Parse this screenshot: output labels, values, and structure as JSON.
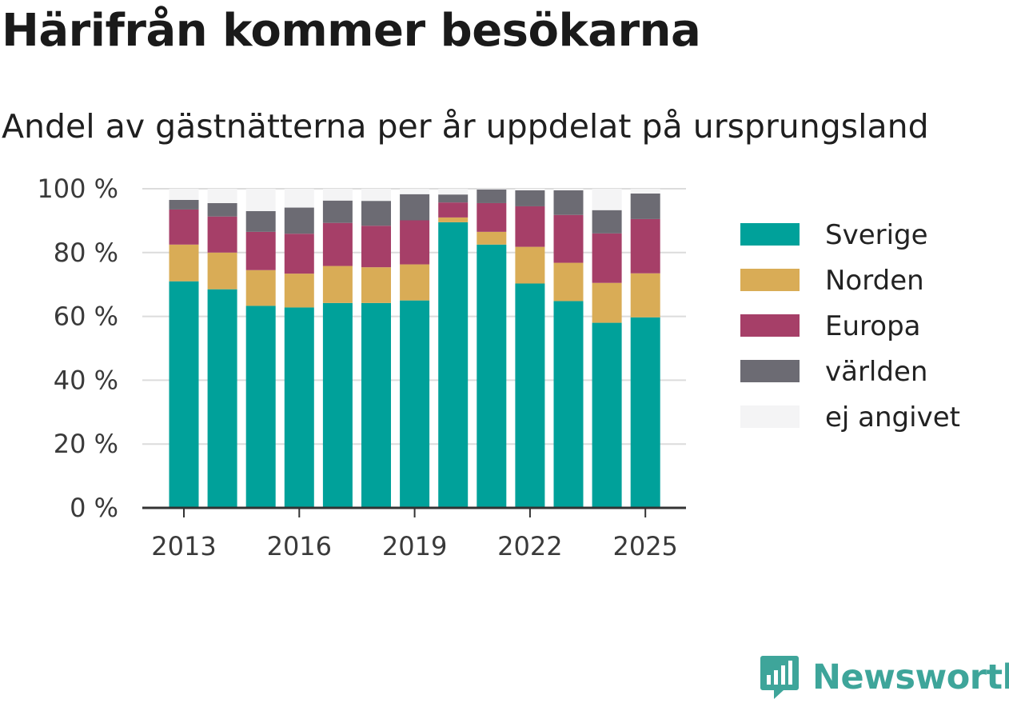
{
  "title": "Härifrån kommer besökarna",
  "subtitle": "Andel av gästnätterna per år uppdelat på ursprungsland",
  "brand": "Newsworthy",
  "brand_color": "#3ea59a",
  "chart_data": {
    "type": "bar",
    "stacked": true,
    "categories": [
      "2013",
      "2014",
      "2015",
      "2016",
      "2017",
      "2018",
      "2019",
      "2020",
      "2021",
      "2022",
      "2023",
      "2024",
      "2025"
    ],
    "x_tick_labels": [
      "2013",
      "2016",
      "2019",
      "2022",
      "2025"
    ],
    "y_tick_labels": [
      "0 %",
      "20 %",
      "40 %",
      "60 %",
      "80 %",
      "100 %"
    ],
    "ylim": [
      0,
      100
    ],
    "yticks": [
      0,
      20,
      40,
      60,
      80,
      100
    ],
    "grid": true,
    "legend_position": "right",
    "series": [
      {
        "name": "Sverige",
        "color": "#00a19a",
        "values": [
          71.0,
          68.5,
          63.3,
          62.8,
          64.2,
          64.2,
          65.0,
          89.5,
          82.5,
          70.3,
          64.8,
          58.0,
          59.7
        ]
      },
      {
        "name": "Norden",
        "color": "#d9ac56",
        "values": [
          11.5,
          11.5,
          11.2,
          10.6,
          11.6,
          11.2,
          11.3,
          1.5,
          4.0,
          11.5,
          12.0,
          12.5,
          13.8
        ]
      },
      {
        "name": "Europa",
        "color": "#a63f68",
        "values": [
          11.0,
          11.3,
          12.0,
          12.5,
          13.5,
          13.0,
          13.8,
          4.7,
          9.0,
          12.7,
          15.0,
          15.5,
          17.0
        ]
      },
      {
        "name": "världen",
        "color": "#6c6b73",
        "values": [
          3.0,
          4.2,
          6.5,
          8.2,
          7.0,
          7.8,
          8.2,
          2.5,
          4.3,
          5.0,
          7.7,
          7.3,
          8.0
        ]
      },
      {
        "name": "ej angivet",
        "color": "#f4f4f5",
        "values": [
          3.5,
          4.5,
          7.0,
          5.9,
          3.7,
          3.8,
          1.7,
          1.8,
          0.2,
          0.5,
          0.5,
          6.7,
          1.5
        ]
      }
    ]
  }
}
